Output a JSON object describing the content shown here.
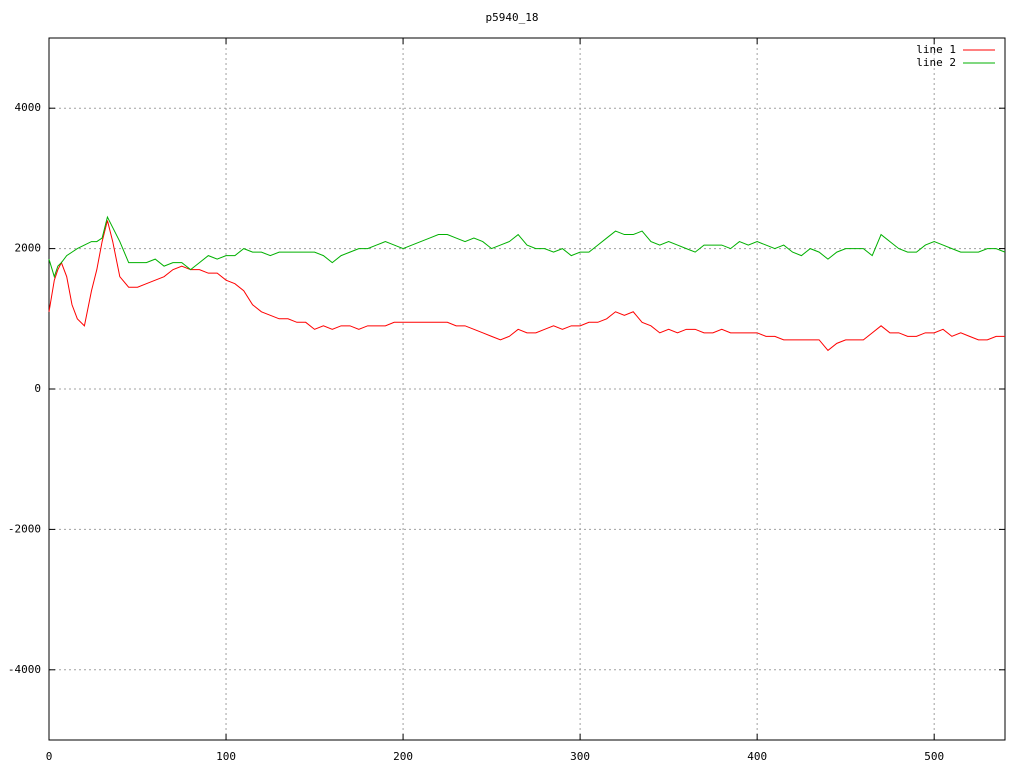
{
  "chart_data": {
    "type": "line",
    "title": "p5940_18",
    "x": [
      0,
      3,
      5,
      7,
      10,
      13,
      16,
      20,
      24,
      27,
      30,
      33,
      36,
      40,
      45,
      50,
      55,
      60,
      65,
      70,
      75,
      80,
      85,
      90,
      95,
      100,
      105,
      110,
      115,
      120,
      125,
      130,
      135,
      140,
      145,
      150,
      155,
      160,
      165,
      170,
      175,
      180,
      185,
      190,
      195,
      200,
      205,
      210,
      215,
      220,
      225,
      230,
      235,
      240,
      245,
      250,
      255,
      260,
      265,
      270,
      275,
      280,
      285,
      290,
      295,
      300,
      305,
      310,
      315,
      320,
      325,
      330,
      335,
      340,
      345,
      350,
      355,
      360,
      365,
      370,
      375,
      380,
      385,
      390,
      395,
      400,
      405,
      410,
      415,
      420,
      425,
      430,
      435,
      440,
      445,
      450,
      455,
      460,
      465,
      470,
      475,
      480,
      485,
      490,
      495,
      500,
      505,
      510,
      515,
      520,
      525,
      530,
      535,
      540
    ],
    "series": [
      {
        "name": "line 1",
        "color": "#ff0000",
        "values": [
          1100,
          1550,
          1700,
          1800,
          1600,
          1200,
          1000,
          900,
          1400,
          1700,
          2100,
          2400,
          2100,
          1600,
          1450,
          1450,
          1500,
          1550,
          1600,
          1700,
          1750,
          1700,
          1700,
          1650,
          1650,
          1550,
          1500,
          1400,
          1200,
          1100,
          1050,
          1000,
          1000,
          950,
          950,
          850,
          900,
          850,
          900,
          900,
          850,
          900,
          900,
          900,
          950,
          950,
          950,
          950,
          950,
          950,
          950,
          900,
          900,
          850,
          800,
          750,
          700,
          750,
          850,
          800,
          800,
          850,
          900,
          850,
          900,
          900,
          950,
          950,
          1000,
          1100,
          1050,
          1100,
          950,
          900,
          800,
          850,
          800,
          850,
          850,
          800,
          800,
          850,
          800,
          800,
          800,
          800,
          750,
          750,
          700,
          700,
          700,
          700,
          700,
          550,
          650,
          700,
          700,
          700,
          800,
          900,
          800,
          800,
          750,
          750,
          800,
          800,
          850,
          750,
          800,
          750,
          700,
          700,
          750,
          750
        ]
      },
      {
        "name": "line 2",
        "color": "#00b000",
        "values": [
          1850,
          1600,
          1750,
          1800,
          1900,
          1950,
          2000,
          2050,
          2100,
          2100,
          2150,
          2450,
          2300,
          2100,
          1800,
          1800,
          1800,
          1850,
          1750,
          1800,
          1800,
          1700,
          1800,
          1900,
          1850,
          1900,
          1900,
          2000,
          1950,
          1950,
          1900,
          1950,
          1950,
          1950,
          1950,
          1950,
          1900,
          1800,
          1900,
          1950,
          2000,
          2000,
          2050,
          2100,
          2050,
          2000,
          2050,
          2100,
          2150,
          2200,
          2200,
          2150,
          2100,
          2150,
          2100,
          2000,
          2050,
          2100,
          2200,
          2050,
          2000,
          2000,
          1950,
          2000,
          1900,
          1950,
          1950,
          2050,
          2150,
          2250,
          2200,
          2200,
          2250,
          2100,
          2050,
          2100,
          2050,
          2000,
          1950,
          2050,
          2050,
          2050,
          2000,
          2100,
          2050,
          2100,
          2050,
          2000,
          2050,
          1950,
          1900,
          2000,
          1950,
          1850,
          1950,
          2000,
          2000,
          2000,
          1900,
          2200,
          2100,
          2000,
          1950,
          1950,
          2050,
          2100,
          2050,
          2000,
          1950,
          1950,
          1950,
          2000,
          2000,
          1950
        ]
      }
    ],
    "xlim": [
      0,
      540
    ],
    "xticks": [
      0,
      100,
      200,
      300,
      400,
      500
    ],
    "ylim": [
      -5000,
      5000
    ],
    "yticks": [
      -4000,
      -2000,
      0,
      2000,
      4000
    ],
    "grid": true,
    "legend": "top-right"
  }
}
